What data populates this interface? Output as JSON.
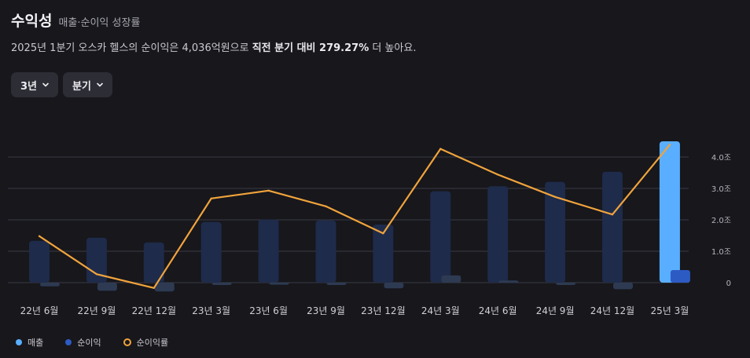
{
  "header": {
    "title": "수익성",
    "subtitle": "매출·순이익 성장률"
  },
  "summary": {
    "prefix": "2025년 1분기 오스카 헬스의 순이익은 4,036억원으로 ",
    "highlight": "직전 분기 대비 279.27%",
    "suffix": " 더 높아요."
  },
  "controls": {
    "period_label": "3년",
    "interval_label": "분기"
  },
  "legend": {
    "revenue": "매출",
    "net_income": "순이익",
    "net_margin": "순이익률"
  },
  "colors": {
    "revenue_bar": "#1e2b4a",
    "revenue_bar_highlight": "#5aaeff",
    "net_income_bar": "#2d3a52",
    "net_income_bar_highlight": "#2d5bc4",
    "net_margin_line": "#f0a33c",
    "legend_revenue": "#5aaeff",
    "legend_net_income": "#2d5bc4"
  },
  "chart_data": {
    "type": "bar",
    "categories": [
      "22년 6월",
      "22년 9월",
      "22년 12월",
      "23년 3월",
      "23년 6월",
      "23년 9월",
      "23년 12월",
      "24년 3월",
      "24년 6월",
      "24년 9월",
      "24년 12월",
      "25년 3월"
    ],
    "y_ticks": [
      "0",
      "1.0조",
      "2.0조",
      "3.0조",
      "4.0조"
    ],
    "y_tick_values": [
      0,
      1.0,
      2.0,
      3.0,
      4.0
    ],
    "ylim": [
      -0.25,
      4.6
    ],
    "series": [
      {
        "name": "매출",
        "unit": "조",
        "values": [
          1.33,
          1.43,
          1.28,
          1.93,
          2.01,
          1.98,
          1.85,
          2.91,
          3.07,
          3.21,
          3.53,
          4.5
        ]
      },
      {
        "name": "순이익",
        "unit": "조",
        "values": [
          -0.12,
          -0.26,
          -0.28,
          -0.01,
          0.01,
          -0.06,
          -0.18,
          0.23,
          0.07,
          -0.05,
          -0.21,
          0.4
        ]
      },
      {
        "name": "순이익률",
        "values": [
          1.48,
          0.27,
          -0.17,
          2.68,
          2.93,
          2.43,
          1.57,
          4.26,
          3.44,
          2.73,
          2.17,
          4.39
        ]
      }
    ],
    "highlight_category": "25년 3월"
  }
}
